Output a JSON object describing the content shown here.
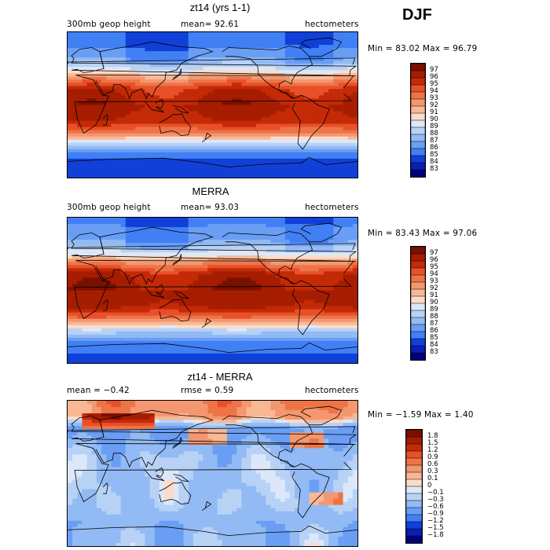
{
  "season": "DJF",
  "colors": {
    "ramp_blue": [
      "#00007a",
      "#0a1fb4",
      "#1040d8",
      "#2460ee",
      "#4080f4",
      "#6a9ef4",
      "#92baf4",
      "#b8d2f6",
      "#dce8fa"
    ],
    "ramp_white": "#ffffff",
    "ramp_red": [
      "#fcdcc8",
      "#f8b894",
      "#f49670",
      "#ee7446",
      "#e8502a",
      "#dc3a14",
      "#c42a06",
      "#a61d00",
      "#7a1000"
    ],
    "coast": "#000000"
  },
  "panels": [
    {
      "title": "zt14 (yrs 1-1)",
      "left_label": "300mb geop height",
      "mean_text": "mean=   92.61",
      "units": "hectometers",
      "minmax": "Min =  83.02 Max =  96.79",
      "levels": [
        "97",
        "96",
        "95",
        "94",
        "93",
        "92",
        "91",
        "90",
        "89",
        "88",
        "87",
        "86",
        "85",
        "84",
        "83"
      ]
    },
    {
      "title": "MERRA",
      "left_label": "300mb geop height",
      "mean_text": "mean=   93.03",
      "units": "hectometers",
      "minmax": "Min =  83.43 Max =  97.06",
      "levels": [
        "97",
        "96",
        "95",
        "94",
        "93",
        "92",
        "91",
        "90",
        "89",
        "88",
        "87",
        "86",
        "85",
        "84",
        "83"
      ]
    },
    {
      "title": "zt14 - MERRA",
      "left_label": "mean =  −0.42",
      "mean_text": "rmse =    0.59",
      "units": "hectometers",
      "minmax": "Min =  −1.59 Max =   1.40",
      "levels": [
        "1.8",
        "1.5",
        "1.2",
        "0.9",
        "0.6",
        "0.3",
        "0.1",
        "0",
        "−0.1",
        "−0.3",
        "−0.6",
        "−0.9",
        "−1.2",
        "−1.5",
        "−1.8"
      ]
    }
  ],
  "chart_data": [
    {
      "type": "heatmap",
      "title": "zt14 (yrs 1-1)",
      "variable": "300mb geop height",
      "units": "hectometers",
      "mean": 92.61,
      "min": 83.02,
      "max": 96.79,
      "contour_levels": [
        83,
        84,
        85,
        86,
        87,
        88,
        89,
        90,
        91,
        92,
        93,
        94,
        95,
        96,
        97
      ],
      "lat_bands": [
        {
          "lat": 90,
          "value": 85
        },
        {
          "lat": 60,
          "value": 86.5
        },
        {
          "lat": 45,
          "value": 89
        },
        {
          "lat": 35,
          "value": 92
        },
        {
          "lat": 20,
          "value": 95.5
        },
        {
          "lat": 0,
          "value": 96.3
        },
        {
          "lat": -20,
          "value": 95.8
        },
        {
          "lat": -35,
          "value": 93
        },
        {
          "lat": -50,
          "value": 88
        },
        {
          "lat": -65,
          "value": 85
        },
        {
          "lat": -90,
          "value": 84
        }
      ]
    },
    {
      "type": "heatmap",
      "title": "MERRA",
      "variable": "300mb geop height",
      "units": "hectometers",
      "mean": 93.03,
      "min": 83.43,
      "max": 97.06,
      "contour_levels": [
        83,
        84,
        85,
        86,
        87,
        88,
        89,
        90,
        91,
        92,
        93,
        94,
        95,
        96,
        97
      ],
      "lat_bands": [
        {
          "lat": 90,
          "value": 85.5
        },
        {
          "lat": 60,
          "value": 87
        },
        {
          "lat": 45,
          "value": 89.5
        },
        {
          "lat": 35,
          "value": 92.5
        },
        {
          "lat": 20,
          "value": 96
        },
        {
          "lat": 0,
          "value": 96.6
        },
        {
          "lat": -20,
          "value": 96.2
        },
        {
          "lat": -35,
          "value": 93.5
        },
        {
          "lat": -50,
          "value": 88.5
        },
        {
          "lat": -65,
          "value": 85.5
        },
        {
          "lat": -90,
          "value": 84.5
        }
      ]
    },
    {
      "type": "heatmap",
      "title": "zt14 - MERRA",
      "units": "hectometers",
      "mean": -0.42,
      "rmse": 0.59,
      "min": -1.59,
      "max": 1.4,
      "contour_levels": [
        -1.8,
        -1.5,
        -1.2,
        -0.9,
        -0.6,
        -0.3,
        -0.1,
        0,
        0.1,
        0.3,
        0.6,
        0.9,
        1.2,
        1.5,
        1.8
      ],
      "lat_bands": [
        {
          "lat": 90,
          "value": 0.6
        },
        {
          "lat": 70,
          "value": 0.4
        },
        {
          "lat": 55,
          "value": -0.7
        },
        {
          "lat": 40,
          "value": -0.6
        },
        {
          "lat": 20,
          "value": -0.35
        },
        {
          "lat": 0,
          "value": -0.3
        },
        {
          "lat": -20,
          "value": -0.3
        },
        {
          "lat": -40,
          "value": -0.3
        },
        {
          "lat": -60,
          "value": -0.5
        },
        {
          "lat": -90,
          "value": -0.4
        }
      ]
    }
  ]
}
